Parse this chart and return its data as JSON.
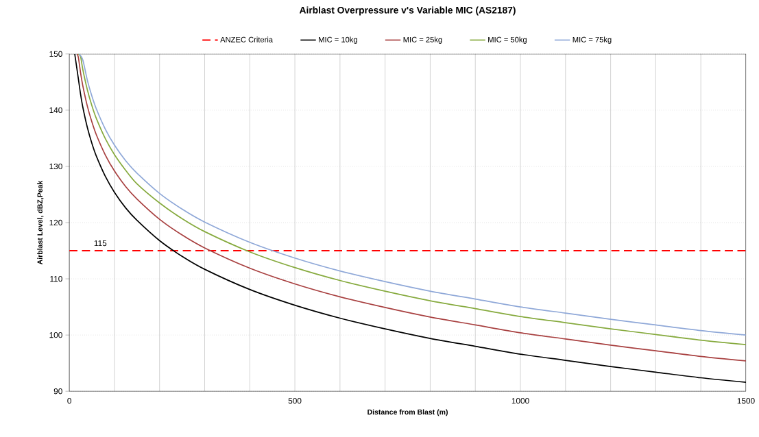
{
  "chart_data": {
    "type": "line",
    "title": "Airblast Overpressure v's Variable MIC  (AS2187)",
    "xlabel": "Distance  from Blast  (m)",
    "ylabel": "Airblast  Level, dBZ,Peak",
    "xlim": [
      0,
      1500
    ],
    "ylim": [
      90,
      150
    ],
    "xticks": [
      0,
      {
        "value": 100,
        "label": null
      },
      {
        "value": 200,
        "label": null
      },
      {
        "value": 300,
        "label": null
      },
      {
        "value": 400,
        "label": null
      },
      500,
      {
        "value": 600,
        "label": null
      },
      {
        "value": 700,
        "label": null
      },
      {
        "value": 800,
        "label": null
      },
      {
        "value": 900,
        "label": null
      },
      1000,
      {
        "value": 1100,
        "label": null
      },
      {
        "value": 1200,
        "label": null
      },
      {
        "value": 1300,
        "label": null
      },
      {
        "value": 1400,
        "label": null
      },
      1500
    ],
    "yticks": [
      90,
      100,
      110,
      120,
      130,
      140,
      150
    ],
    "grid": true,
    "legend": "top",
    "marker": "none",
    "line_style": "solid",
    "ref_lines": [
      {
        "axis": "y",
        "value": 115,
        "label": "ANZEC Criteria",
        "color": "#ff0000",
        "line_style": "dashed"
      }
    ],
    "annotations": [
      {
        "text": "115",
        "x": 50,
        "y": 115
      }
    ],
    "series": [
      {
        "name": "MIC = 10kg",
        "color": "#000000",
        "x": [
          12,
          20,
          25,
          30,
          40,
          50,
          60,
          80,
          100,
          125,
          150,
          200,
          250,
          300,
          400,
          500,
          600,
          700,
          800,
          900,
          1000,
          1100,
          1200,
          1300,
          1400,
          1500
        ],
        "values": [
          150,
          145.6,
          142.8,
          140.5,
          136.9,
          134.1,
          131.8,
          128.2,
          125.4,
          122.6,
          120.4,
          116.8,
          114.0,
          111.7,
          108.1,
          105.3,
          103.0,
          101.1,
          99.4,
          98.0,
          96.6,
          95.5,
          94.4,
          93.4,
          92.4,
          91.6
        ]
      },
      {
        "name": "MIC = 25kg",
        "color": "#a84040",
        "x": [
          17,
          20,
          25,
          30,
          40,
          50,
          60,
          80,
          100,
          125,
          150,
          200,
          250,
          300,
          400,
          500,
          600,
          700,
          800,
          900,
          1000,
          1100,
          1200,
          1300,
          1400,
          1500
        ],
        "values": [
          150,
          149.4,
          146.6,
          144.3,
          140.7,
          137.9,
          135.6,
          132.0,
          129.2,
          126.4,
          124.2,
          120.6,
          117.8,
          115.5,
          111.9,
          109.1,
          106.8,
          104.9,
          103.2,
          101.8,
          100.4,
          99.3,
          98.2,
          97.2,
          96.2,
          95.4
        ]
      },
      {
        "name": "MIC = 50kg",
        "color": "#86aa3e",
        "x": [
          20,
          25,
          30,
          40,
          50,
          60,
          80,
          100,
          125,
          150,
          200,
          250,
          300,
          400,
          500,
          600,
          700,
          800,
          900,
          1000,
          1100,
          1200,
          1300,
          1400,
          1500
        ],
        "values": [
          150,
          149.5,
          147.2,
          143.6,
          140.8,
          138.5,
          134.9,
          132.1,
          129.3,
          126.9,
          123.5,
          120.7,
          118.4,
          114.8,
          112.0,
          109.7,
          107.8,
          106.1,
          104.7,
          103.3,
          102.2,
          101.1,
          100.1,
          99.1,
          98.3
        ]
      },
      {
        "name": "MIC = 75kg",
        "color": "#8fa8d8",
        "x": [
          22,
          30,
          40,
          50,
          60,
          80,
          100,
          125,
          150,
          200,
          250,
          300,
          400,
          500,
          600,
          700,
          800,
          900,
          1000,
          1100,
          1200,
          1300,
          1400,
          1500
        ],
        "values": [
          150,
          148.9,
          145.3,
          142.5,
          140.2,
          136.6,
          133.8,
          131.0,
          128.8,
          125.2,
          122.4,
          120.1,
          116.5,
          113.7,
          111.4,
          109.5,
          107.8,
          106.4,
          105.0,
          103.9,
          102.8,
          101.8,
          100.8,
          100.0
        ]
      }
    ]
  }
}
